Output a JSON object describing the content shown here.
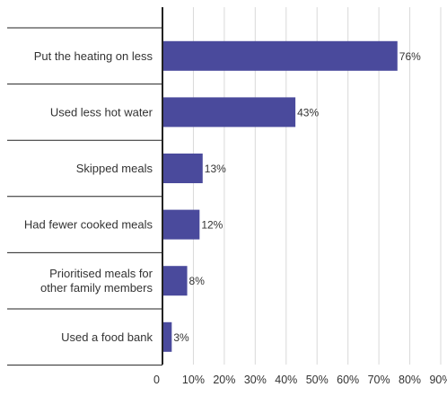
{
  "chart_data": {
    "type": "bar",
    "orientation": "horizontal",
    "categories": [
      [
        "Put the heating on less"
      ],
      [
        "Used less hot water"
      ],
      [
        "Skipped meals"
      ],
      [
        "Had fewer cooked meals"
      ],
      [
        "Prioritised meals for",
        "other family members"
      ],
      [
        "Used a food bank"
      ]
    ],
    "values": [
      76,
      43,
      13,
      12,
      8,
      3
    ],
    "value_labels": [
      "76%",
      "43%",
      "13%",
      "12%",
      "8%",
      "3%"
    ],
    "xlim": [
      0,
      90
    ],
    "x_ticks": [
      0,
      10,
      20,
      30,
      40,
      50,
      60,
      70,
      80,
      90
    ],
    "x_tick_labels": [
      "0",
      "10%",
      "20%",
      "30%",
      "40%",
      "50%",
      "60%",
      "70%",
      "80%",
      "90%"
    ],
    "grid": "vertical",
    "legend": "none",
    "title": "",
    "xlabel": "",
    "ylabel": "",
    "colors": {
      "bar": "#4a4a9c",
      "grid": "#d9d9d9",
      "axis": "#222222",
      "separator": "#222222",
      "text": "#333333"
    }
  }
}
